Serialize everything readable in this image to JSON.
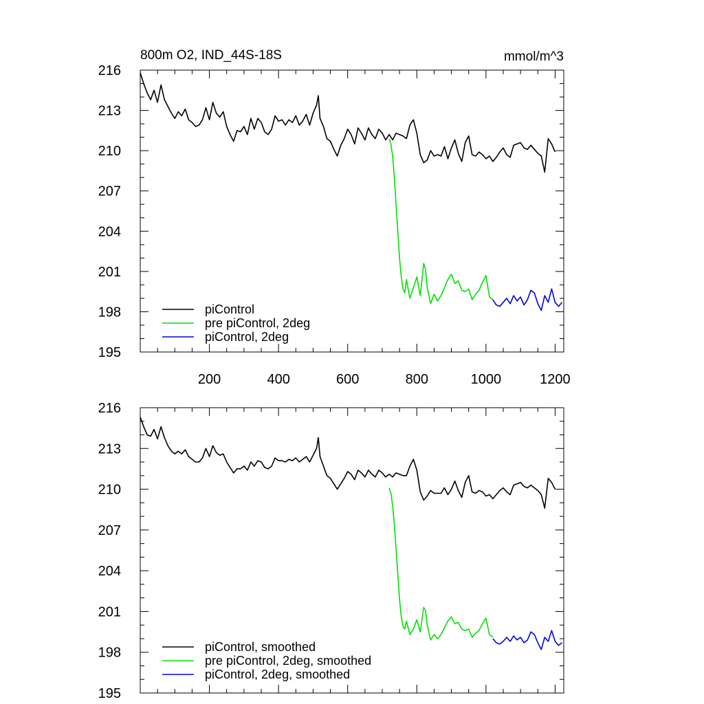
{
  "chart_data": [
    {
      "type": "line",
      "title": "800m O2, IND_44S-18S",
      "units": "mmol/m^3",
      "xlim": [
        0,
        1225
      ],
      "ylim": [
        195,
        216
      ],
      "yticks": [
        "195",
        "198",
        "201",
        "204",
        "207",
        "210",
        "213",
        "216"
      ],
      "xticks": [
        "200",
        "400",
        "600",
        "800",
        "1000",
        "1200"
      ],
      "legend_position": "bottom-left",
      "series": [
        {
          "name": "piControl",
          "color": "#000000",
          "x": [
            0,
            10,
            20,
            30,
            40,
            50,
            60,
            70,
            80,
            90,
            100,
            110,
            120,
            130,
            140,
            150,
            160,
            170,
            180,
            190,
            200,
            210,
            220,
            230,
            240,
            250,
            260,
            270,
            280,
            290,
            300,
            310,
            320,
            330,
            340,
            350,
            360,
            370,
            380,
            390,
            400,
            410,
            420,
            430,
            440,
            450,
            460,
            470,
            480,
            490,
            500,
            510,
            515,
            520,
            530,
            540,
            550,
            560,
            570,
            580,
            590,
            600,
            610,
            620,
            630,
            640,
            650,
            660,
            670,
            680,
            690,
            700,
            710,
            720,
            730,
            740,
            750,
            760,
            770,
            780,
            790,
            800,
            810,
            820,
            830,
            840,
            850,
            860,
            870,
            880,
            890,
            900,
            910,
            920,
            930,
            940,
            950,
            960,
            970,
            980,
            990,
            1000,
            1010,
            1020,
            1030,
            1040,
            1050,
            1060,
            1070,
            1080,
            1090,
            1100,
            1110,
            1120,
            1130,
            1140,
            1150,
            1160,
            1170,
            1180,
            1190,
            1200
          ],
          "y": [
            215.8,
            215,
            214.3,
            213.8,
            214.5,
            213.6,
            214.9,
            213.8,
            213.3,
            212.8,
            212.4,
            212.9,
            212.6,
            213.1,
            212.3,
            212.1,
            211.8,
            211.9,
            212.3,
            213.2,
            212.3,
            213.6,
            212.8,
            212.5,
            212.9,
            211.8,
            211.2,
            210.7,
            211.5,
            211.4,
            211.8,
            211.2,
            212.4,
            211.6,
            212.4,
            212.1,
            211.4,
            211.2,
            211.6,
            212.6,
            212.2,
            212.3,
            211.9,
            212.3,
            212.1,
            212.6,
            211.9,
            212.2,
            212.7,
            211.9,
            212.8,
            213.4,
            214.1,
            212.4,
            211.8,
            210.9,
            210.7,
            210.1,
            209.6,
            210.4,
            210.9,
            211.6,
            211.2,
            210.5,
            211.7,
            211.3,
            210.8,
            211.7,
            211.2,
            210.9,
            211.6,
            211.3,
            210.8,
            211.2,
            210.8,
            211.3,
            211.2,
            211.1,
            210.9,
            211.9,
            212.3,
            211.3,
            209.7,
            209.1,
            209.3,
            210,
            209.6,
            209.7,
            209.6,
            210.3,
            209.4,
            210.2,
            210.8,
            209.8,
            209.2,
            210.6,
            211.1,
            209.7,
            209.6,
            209.9,
            209.7,
            209.4,
            209.6,
            209.2,
            209.5,
            209.9,
            210.2,
            209.7,
            209.5,
            210.4,
            210.5,
            210.6,
            210.2,
            210.1,
            210.4,
            210.1,
            209.8,
            209.6,
            208.4,
            210.9,
            210.5,
            209.9
          ]
        },
        {
          "name": "pre piControl, 2deg",
          "color": "#00e000",
          "x": [
            720,
            725,
            730,
            735,
            740,
            745,
            750,
            755,
            760,
            765,
            770,
            780,
            790,
            800,
            810,
            820,
            825,
            830,
            840,
            850,
            860,
            870,
            880,
            890,
            900,
            910,
            920,
            930,
            940,
            950,
            960,
            970,
            980,
            990,
            1000,
            1010,
            1020
          ],
          "y": [
            210.9,
            210.5,
            209.6,
            208,
            206,
            204,
            202,
            200.6,
            199.7,
            199.4,
            200.4,
            199,
            199.8,
            200.6,
            199.2,
            201.6,
            201.2,
            199.8,
            198.6,
            199.3,
            198.8,
            199.2,
            199.8,
            200.4,
            200.8,
            200.1,
            200.3,
            199.6,
            199.5,
            199.7,
            198.9,
            199.3,
            199.6,
            200.2,
            200.7,
            199.1,
            198.9
          ]
        },
        {
          "name": "piControl, 2deg",
          "color": "#0000e0",
          "x": [
            1020,
            1030,
            1040,
            1050,
            1060,
            1070,
            1080,
            1090,
            1100,
            1110,
            1120,
            1130,
            1140,
            1150,
            1160,
            1170,
            1180,
            1190,
            1200,
            1210,
            1220
          ],
          "y": [
            198.9,
            198.5,
            198.4,
            198.7,
            199,
            198.6,
            199.2,
            198.8,
            199.1,
            198.5,
            198.9,
            199.6,
            199.4,
            198.6,
            198.1,
            199.2,
            198.7,
            199.7,
            198.7,
            198.4,
            198.7
          ]
        }
      ]
    },
    {
      "type": "line",
      "xlim": [
        0,
        1225
      ],
      "ylim": [
        195,
        216
      ],
      "yticks": [
        "195",
        "198",
        "201",
        "204",
        "207",
        "210",
        "213",
        "216"
      ],
      "legend_position": "bottom-left",
      "series": [
        {
          "name": "piControl, smoothed",
          "color": "#000000",
          "x": [
            0,
            10,
            20,
            30,
            40,
            50,
            60,
            70,
            80,
            90,
            100,
            110,
            120,
            130,
            140,
            150,
            160,
            170,
            180,
            190,
            200,
            210,
            220,
            230,
            240,
            250,
            260,
            270,
            280,
            290,
            300,
            310,
            320,
            330,
            340,
            350,
            360,
            370,
            380,
            390,
            400,
            410,
            420,
            430,
            440,
            450,
            460,
            470,
            480,
            490,
            500,
            510,
            515,
            520,
            530,
            540,
            550,
            560,
            570,
            580,
            590,
            600,
            610,
            620,
            630,
            640,
            650,
            660,
            670,
            680,
            690,
            700,
            710,
            720,
            730,
            740,
            750,
            760,
            770,
            780,
            790,
            800,
            810,
            820,
            830,
            840,
            850,
            860,
            870,
            880,
            890,
            900,
            910,
            920,
            930,
            940,
            950,
            960,
            970,
            980,
            990,
            1000,
            1010,
            1020,
            1030,
            1040,
            1050,
            1060,
            1070,
            1080,
            1090,
            1100,
            1110,
            1120,
            1130,
            1140,
            1150,
            1160,
            1170,
            1180,
            1190,
            1200
          ],
          "y": [
            215.3,
            214.6,
            214,
            213.9,
            214.4,
            213.7,
            214.6,
            213.8,
            213.2,
            212.8,
            212.6,
            212.8,
            212.6,
            212.9,
            212.4,
            212.2,
            212,
            212,
            212.3,
            213,
            212.4,
            213.2,
            212.7,
            212.5,
            212.6,
            212,
            211.6,
            211.2,
            211.5,
            211.5,
            211.7,
            211.4,
            212,
            211.7,
            212.1,
            212,
            211.6,
            211.5,
            211.7,
            212.3,
            212.1,
            212.1,
            212,
            212.2,
            212.1,
            212.3,
            212,
            212.2,
            212.4,
            212,
            212.5,
            213,
            213.8,
            212.4,
            211.7,
            211,
            210.8,
            210.4,
            210,
            210.4,
            210.8,
            211.3,
            211.1,
            210.7,
            211.4,
            211.2,
            210.9,
            211.4,
            211.1,
            210.9,
            211.4,
            211.2,
            210.9,
            211.1,
            210.9,
            211.2,
            211.1,
            211,
            211,
            211.7,
            212.2,
            211.4,
            209.8,
            209.2,
            209.5,
            209.9,
            209.7,
            209.7,
            209.7,
            210.1,
            209.6,
            210,
            210.6,
            209.9,
            209.4,
            210.5,
            211,
            209.8,
            209.7,
            209.9,
            209.8,
            209.5,
            209.6,
            209.3,
            209.6,
            209.9,
            210.1,
            209.8,
            209.6,
            210.3,
            210.4,
            210.5,
            210.2,
            210.1,
            210.3,
            210.1,
            209.9,
            209.6,
            208.6,
            210.8,
            210.5,
            210
          ]
        },
        {
          "name": "pre piControl, 2deg, smoothed",
          "color": "#00e000",
          "x": [
            720,
            725,
            730,
            735,
            740,
            745,
            750,
            755,
            760,
            765,
            770,
            780,
            790,
            800,
            810,
            820,
            825,
            830,
            840,
            850,
            860,
            870,
            880,
            890,
            900,
            910,
            920,
            930,
            940,
            950,
            960,
            970,
            980,
            990,
            1000,
            1010,
            1020
          ],
          "y": [
            210.1,
            209.7,
            208.8,
            207.4,
            205.6,
            203.8,
            201.9,
            200.6,
            199.9,
            199.7,
            200.3,
            199.3,
            199.7,
            200.4,
            199.5,
            201.3,
            201.1,
            200,
            198.9,
            199.3,
            199,
            199.3,
            199.8,
            200.3,
            200.6,
            200.1,
            200.2,
            199.7,
            199.6,
            199.7,
            199.1,
            199.4,
            199.6,
            200.1,
            200.5,
            199.3,
            199.1
          ]
        },
        {
          "name": "piControl, 2deg, smoothed",
          "color": "#0000e0",
          "x": [
            1020,
            1030,
            1040,
            1050,
            1060,
            1070,
            1080,
            1090,
            1100,
            1110,
            1120,
            1130,
            1140,
            1150,
            1160,
            1170,
            1180,
            1190,
            1200,
            1210,
            1220
          ],
          "y": [
            199,
            198.7,
            198.6,
            198.8,
            199.1,
            198.8,
            199.2,
            198.9,
            199.1,
            198.7,
            198.9,
            199.5,
            199.3,
            198.7,
            198.2,
            199.1,
            198.8,
            199.6,
            198.8,
            198.5,
            198.7
          ]
        }
      ]
    }
  ]
}
